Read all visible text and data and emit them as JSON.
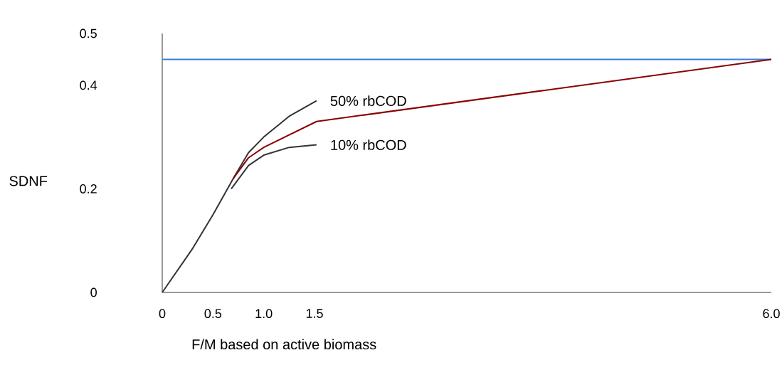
{
  "chart_data": {
    "type": "line",
    "xlabel": "F/M based on active biomass",
    "ylabel": "SDNF",
    "xlim": [
      0,
      6
    ],
    "ylim": [
      0,
      0.5
    ],
    "xticks": [
      0,
      0.5,
      {
        "value": 1,
        "label": "1.0"
      },
      1.5,
      {
        "value": 6,
        "label": "6.0"
      }
    ],
    "yticks": [
      0,
      0.2,
      0.4,
      0.5
    ],
    "series": [
      {
        "name": "50% rbCOD",
        "color": "#333333",
        "x": [
          0,
          0.3,
          0.5,
          0.7,
          0.85,
          1.0,
          1.25,
          1.52
        ],
        "values": [
          0,
          0.085,
          0.15,
          0.22,
          0.27,
          0.3,
          0.34,
          0.37
        ]
      },
      {
        "name": "10% rbCOD",
        "color": "#333333",
        "x": [
          0.68,
          0.85,
          1.0,
          1.25,
          1.52
        ],
        "values": [
          0.2,
          0.245,
          0.265,
          0.28,
          0.285
        ]
      },
      {
        "color": "#8b0000",
        "x": [
          0.7,
          0.85,
          1.0,
          1.52,
          6
        ],
        "values": [
          0.22,
          0.26,
          0.28,
          0.33,
          0.45
        ]
      }
    ],
    "ref_lines": [
      {
        "axis": "y",
        "value": 0.45,
        "color": "#3a7fd5"
      }
    ]
  }
}
